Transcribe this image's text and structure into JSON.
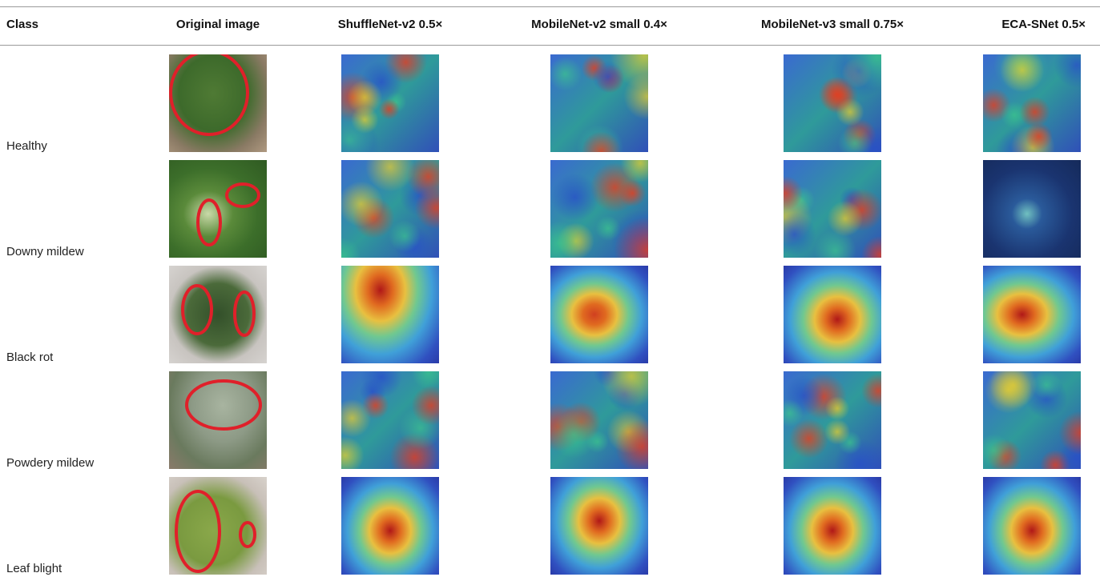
{
  "table": {
    "header": [
      "Class",
      "Original image",
      "ShuffleNet-v2 0.5×",
      "MobileNet-v2 small 0.4×",
      "MobileNet-v3 small 0.75×",
      "ECA-SNet 0.5×"
    ],
    "rows": [
      "Healthy",
      "Downy mildew",
      "Black rot",
      "Powdery mildew",
      "Leaf blight"
    ]
  }
}
